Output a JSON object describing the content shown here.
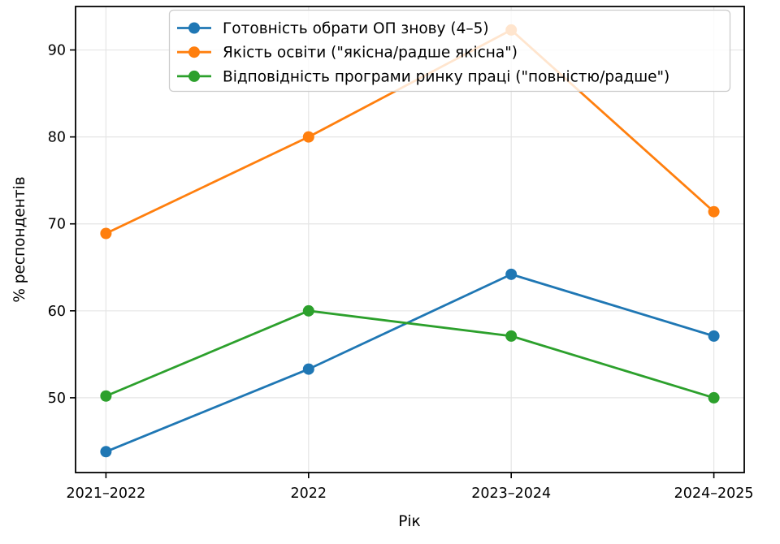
{
  "chart_data": {
    "type": "line",
    "title": "",
    "xlabel": "Рік",
    "ylabel": "% респондентів",
    "categories": [
      "2021–2022",
      "2022",
      "2023–2024",
      "2024–2025"
    ],
    "series": [
      {
        "name": "Готовність обрати ОП знову (4–5)",
        "color": "#1f77b4",
        "values": [
          43.8,
          53.3,
          64.2,
          57.1
        ]
      },
      {
        "name": "Якість освіти (\"якісна/радше якісна\")",
        "color": "#ff7f0e",
        "values": [
          68.9,
          80.0,
          92.3,
          71.4
        ]
      },
      {
        "name": "Відповідність програми ринку праці (\"повністю/радше\")",
        "color": "#2ca02c",
        "values": [
          50.2,
          60.0,
          57.1,
          50.0
        ]
      }
    ],
    "yticks": [
      50,
      60,
      70,
      80,
      90
    ],
    "ylim": [
      41.4,
      95.0
    ],
    "xlim": [
      -0.15,
      3.15
    ],
    "grid": true,
    "grid_color": "#e5e5e5",
    "axis_color": "#000000",
    "legend_position": "upper center",
    "legend_border_color": "#cccccc",
    "legend_bg": "rgba(255,255,255,0.8)",
    "plot_bg": "#ffffff"
  }
}
